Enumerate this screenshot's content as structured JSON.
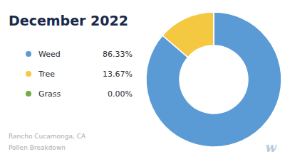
{
  "chart_data": {
    "type": "pie",
    "title": "December 2022",
    "subtitle": [
      "Rancho Cucamonga, CA",
      "Pollen Breakdown"
    ],
    "annotations": [
      "w"
    ],
    "categories": [
      "Weed",
      "Tree",
      "Grass"
    ],
    "values": [
      86.33,
      13.67,
      0.001
    ],
    "value_labels": [
      "86.33%",
      "13.67%",
      "0.00%"
    ],
    "colors": [
      "#5B9BD5",
      "#F5C842",
      "#70AD47"
    ],
    "legend": "left"
  }
}
